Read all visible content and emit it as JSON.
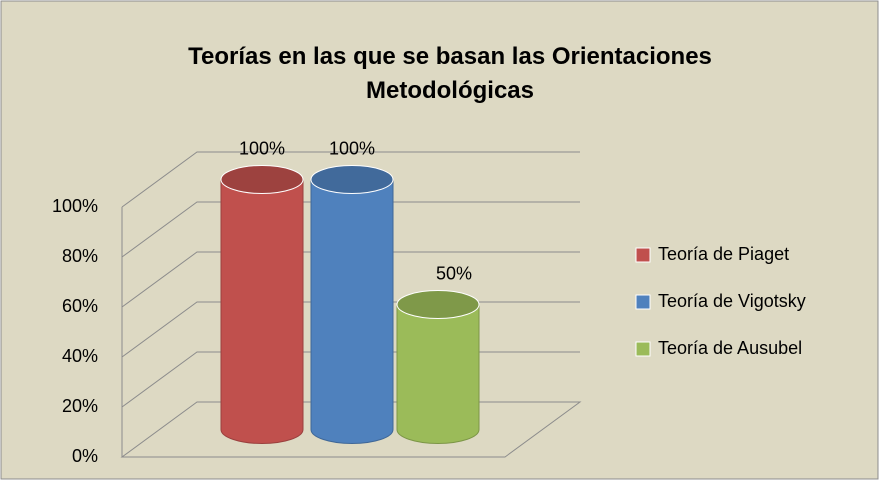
{
  "chart_data": {
    "type": "bar",
    "title": "Teorías en las que se basan las Orientaciones Metodológicas",
    "series": [
      {
        "name": "Teoría de Piaget",
        "color": "#c0504d",
        "values": [
          100
        ],
        "value_labels": [
          "100%"
        ]
      },
      {
        "name": "Teoría de Vigotsky",
        "color": "#4f81bd",
        "values": [
          100
        ],
        "value_labels": [
          "100%"
        ]
      },
      {
        "name": "Teoría de Ausubel",
        "color": "#9bbb59",
        "values": [
          50
        ],
        "value_labels": [
          "50%"
        ]
      }
    ],
    "ylim": [
      0,
      100
    ],
    "yticks": [
      {
        "value": 0,
        "label": "0%"
      },
      {
        "value": 20,
        "label": "20%"
      },
      {
        "value": 40,
        "label": "40%"
      },
      {
        "value": 60,
        "label": "60%"
      },
      {
        "value": 80,
        "label": "80%"
      },
      {
        "value": 100,
        "label": "100%"
      }
    ],
    "grid": true,
    "legend": "right"
  }
}
